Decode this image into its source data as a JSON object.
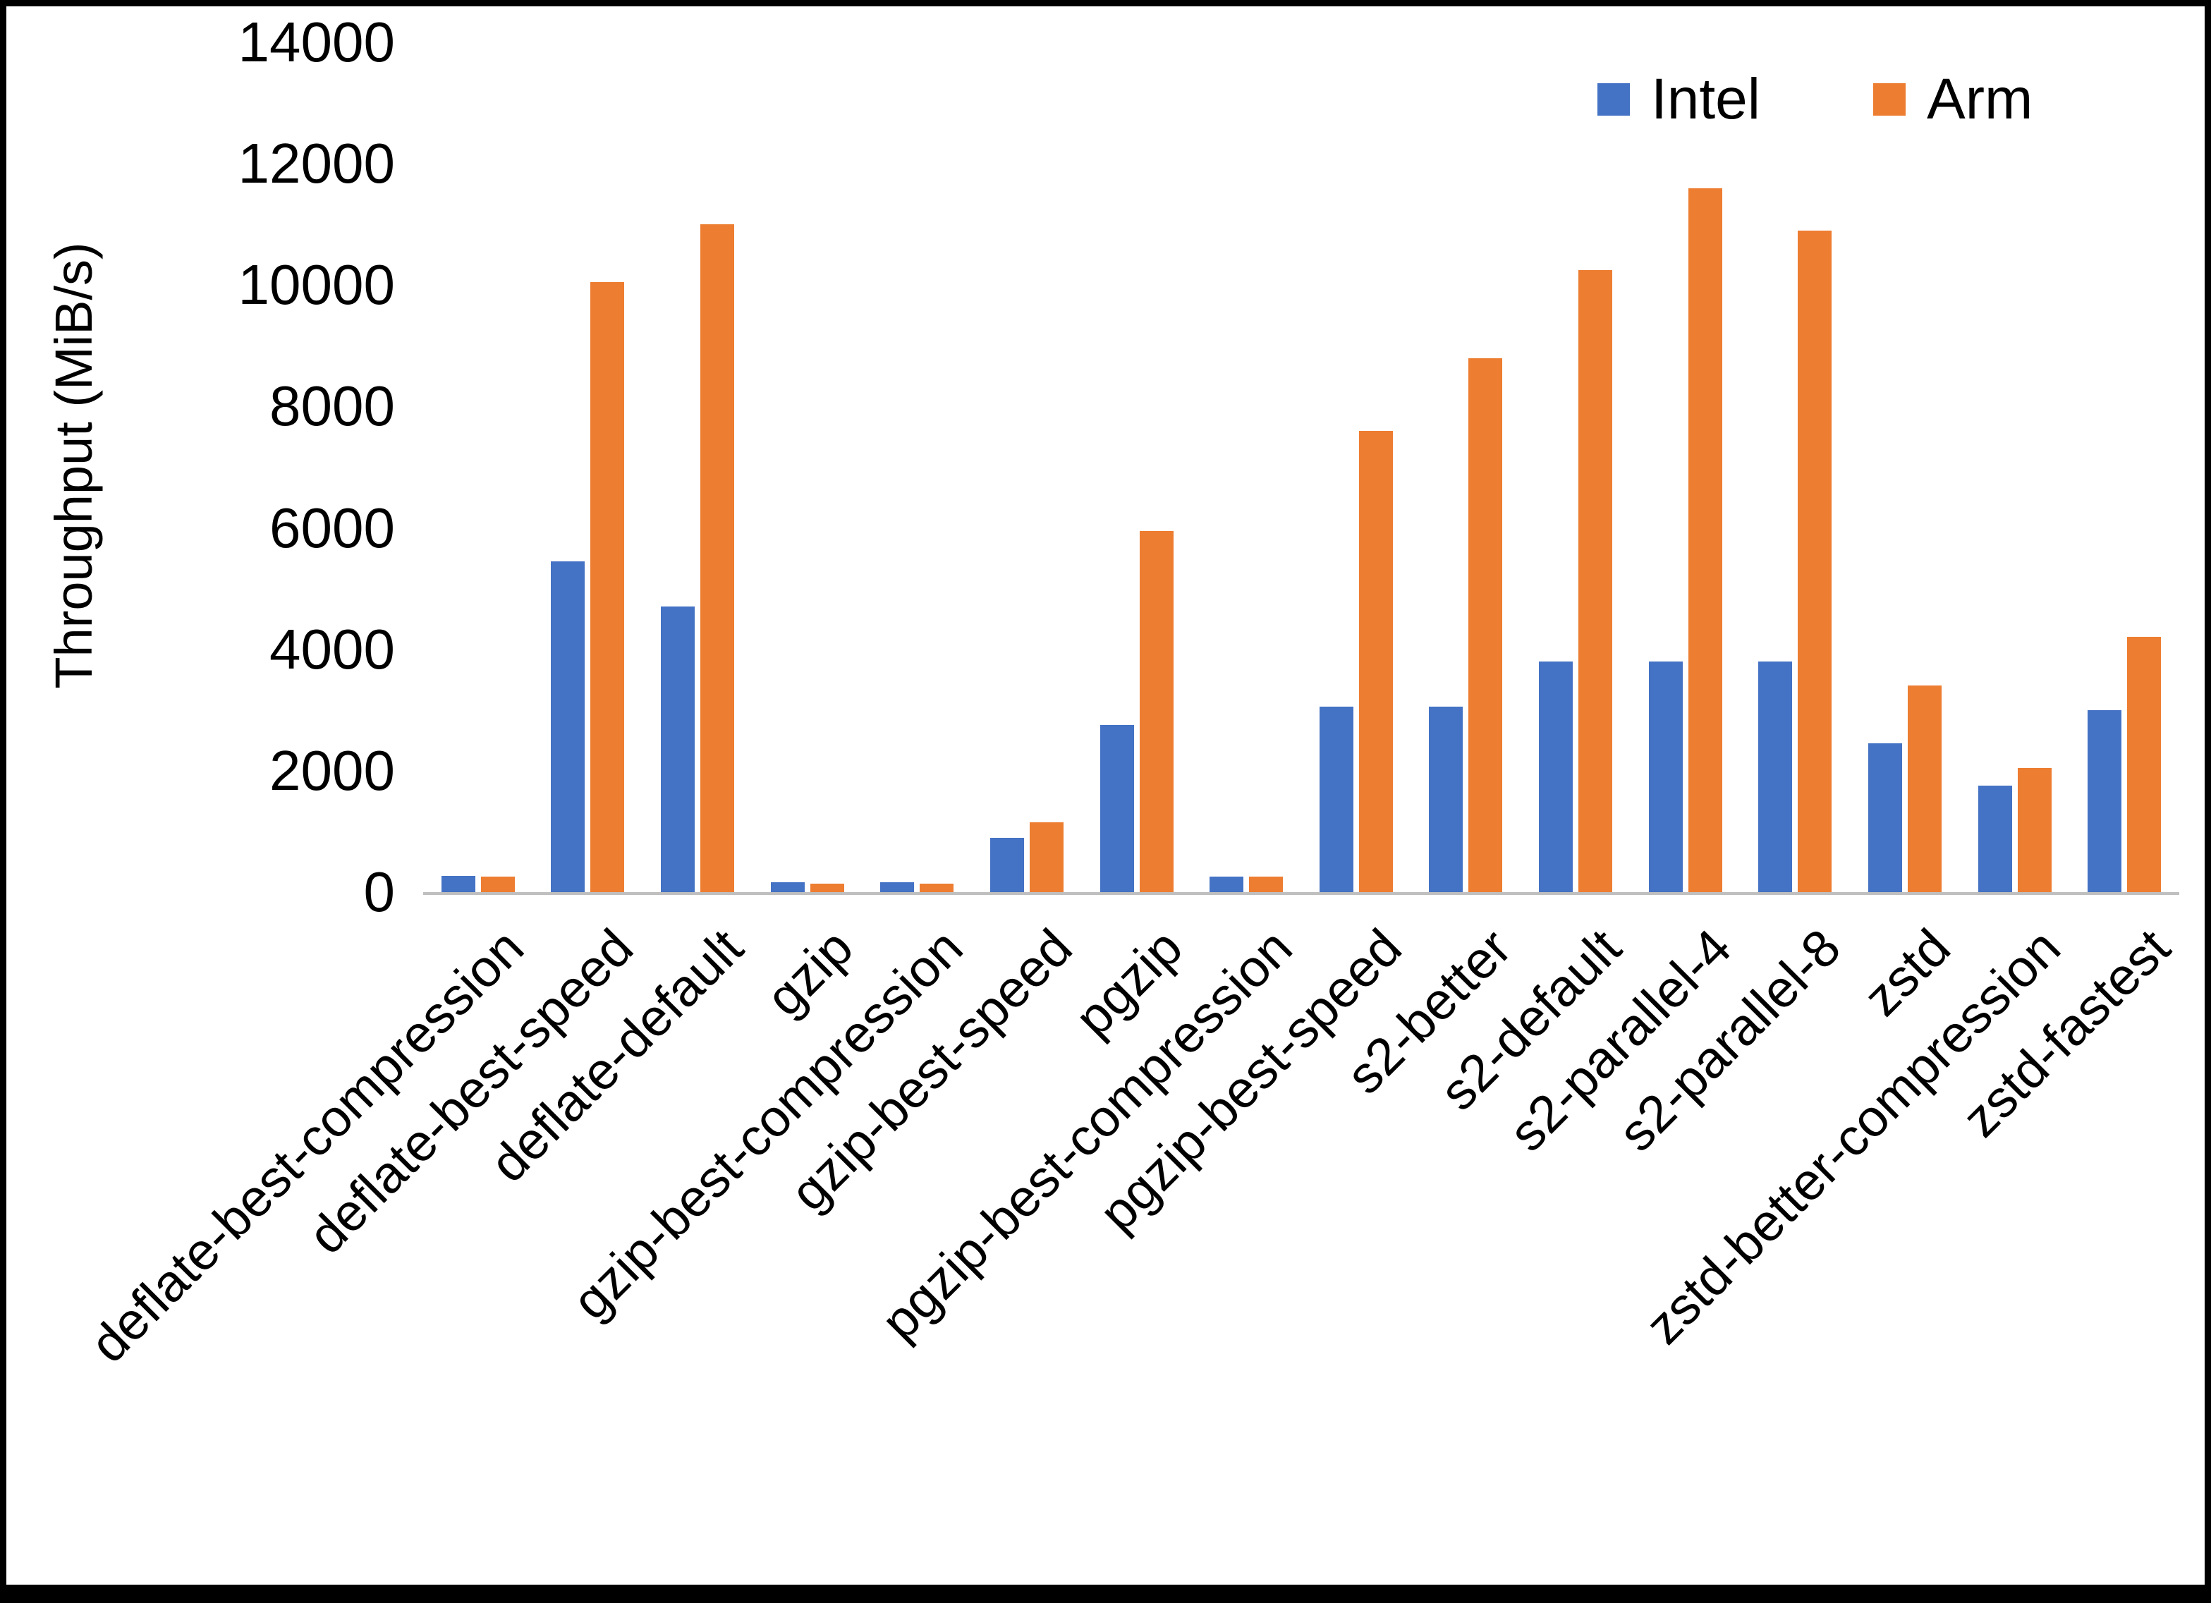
{
  "chart_data": {
    "type": "bar",
    "title": "",
    "ylabel": "Throughput (MiB/s)",
    "xlabel": "",
    "ylim": [
      0,
      14000
    ],
    "ytick_interval": 2000,
    "grid": false,
    "legend_position": "top-right",
    "categories": [
      "deflate-best-compression",
      "deflate-best-speed",
      "deflate-default",
      "gzip",
      "gzip-best-compression",
      "gzip-best-speed",
      "pgzip",
      "pgzip-best-compression",
      "pgzip-best-speed",
      "s2-better",
      "s2-default",
      "s2-parallel-4",
      "s2-parallel-8",
      "zstd",
      "zstd-better-compression",
      "zstd-fastest"
    ],
    "series": [
      {
        "name": "Intel",
        "color": "#4472C4",
        "values": [
          270,
          5450,
          4700,
          160,
          160,
          900,
          2750,
          260,
          3050,
          3050,
          3800,
          3800,
          3800,
          2450,
          1750,
          3000
        ]
      },
      {
        "name": "Arm",
        "color": "#ED7D31",
        "values": [
          260,
          10050,
          11000,
          140,
          140,
          1150,
          5950,
          260,
          7600,
          8800,
          10250,
          11600,
          10900,
          3400,
          2050,
          4200
        ]
      }
    ]
  },
  "axis": {
    "y_tick_labels": [
      "0",
      "2000",
      "4000",
      "6000",
      "8000",
      "10000",
      "12000",
      "14000"
    ],
    "y_axis_title": "Throughput (MiB/s)"
  },
  "legend": {
    "items": [
      {
        "label": "Intel",
        "color": "#4472C4"
      },
      {
        "label": "Arm",
        "color": "#ED7D31"
      }
    ]
  },
  "frame_color": "#000000",
  "axis_line_color": "#bfbfbf"
}
